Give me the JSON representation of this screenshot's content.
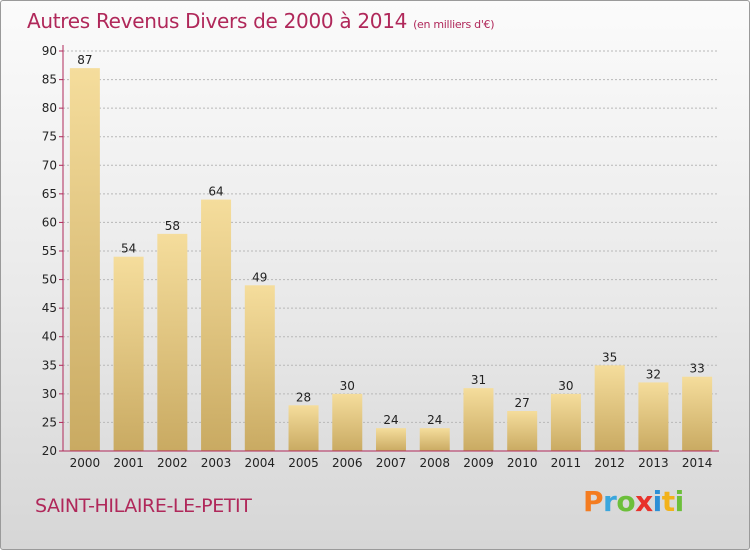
{
  "title": "Autres Revenus Divers de 2000 à 2014",
  "subtitle": "(en milliers d'€)",
  "commune": "SAINT-HILAIRE-LE-PETIT",
  "brand": {
    "text": "Proxiti",
    "letter_colors": [
      "#f47c20",
      "#3aa6dd",
      "#6cbf3a",
      "#e8322b",
      "#2c8fd6",
      "#f2b21a",
      "#6cbf3a"
    ]
  },
  "colors": {
    "accent": "#b0285a",
    "bar_light": "#f5dd9c",
    "bar_dark": "#c9aa62",
    "axis": "#b0285a",
    "grid": "#b8b8b8"
  },
  "chart_data": {
    "type": "bar",
    "title": "Autres Revenus Divers de 2000 à 2014",
    "subtitle": "(en milliers d'€)",
    "categories": [
      "2000",
      "2001",
      "2002",
      "2003",
      "2004",
      "2005",
      "2006",
      "2007",
      "2008",
      "2009",
      "2010",
      "2011",
      "2012",
      "2013",
      "2014"
    ],
    "values": [
      87,
      54,
      58,
      64,
      49,
      28,
      30,
      24,
      24,
      31,
      27,
      30,
      35,
      32,
      33
    ],
    "ylim": [
      20,
      90
    ],
    "yticks": [
      20,
      25,
      30,
      35,
      40,
      45,
      50,
      55,
      60,
      65,
      70,
      75,
      80,
      85,
      90
    ],
    "grid": true,
    "data_labels": true
  }
}
